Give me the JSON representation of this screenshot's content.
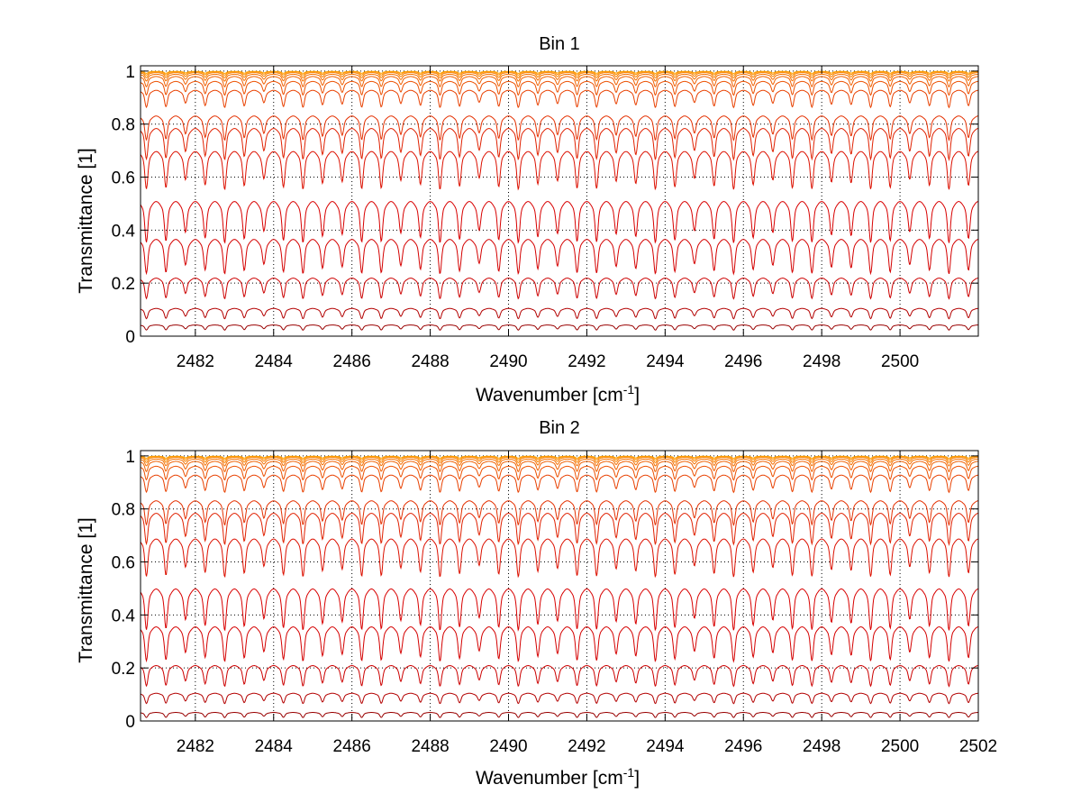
{
  "chart_data": [
    {
      "type": "line",
      "title": "Bin 1",
      "xlabel": "Wavenumber [cm",
      "xlabel_sup": "-1",
      "xlabel_suffix": "]",
      "ylabel": "Transmittance [1]",
      "xlim": [
        2480.6,
        2502.0
      ],
      "ylim": [
        0,
        1.02
      ],
      "xticks": [
        2482,
        2484,
        2486,
        2488,
        2490,
        2492,
        2494,
        2496,
        2498,
        2500
      ],
      "xtick_labels": [
        "2482",
        "2484",
        "2486",
        "2488",
        "2490",
        "2492",
        "2494",
        "2496",
        "2498",
        "2500"
      ],
      "yticks": [
        0,
        0.2,
        0.4,
        0.6,
        0.8,
        1
      ],
      "ytick_labels": [
        "0",
        "0.2",
        "0.4",
        "0.6",
        "0.8",
        "1"
      ],
      "grid": true,
      "legend": "none",
      "line_spacing_cm1": 0.5,
      "series": [
        {
          "baseline": 0.0,
          "depth": 0.0,
          "color": "#7a0000"
        },
        {
          "baseline": 0.04,
          "depth": 0.015,
          "color": "#990000"
        },
        {
          "baseline": 0.1,
          "depth": 0.03,
          "color": "#b30000"
        },
        {
          "baseline": 0.21,
          "depth": 0.06,
          "color": "#cc0000"
        },
        {
          "baseline": 0.35,
          "depth": 0.1,
          "color": "#d40000"
        },
        {
          "baseline": 0.49,
          "depth": 0.12,
          "color": "#d80000"
        },
        {
          "baseline": 0.68,
          "depth": 0.11,
          "color": "#dc1000"
        },
        {
          "baseline": 0.77,
          "depth": 0.09,
          "color": "#e02000"
        },
        {
          "baseline": 0.82,
          "depth": 0.07,
          "color": "#e43000"
        },
        {
          "baseline": 0.92,
          "depth": 0.05,
          "color": "#e84000"
        },
        {
          "baseline": 0.955,
          "depth": 0.04,
          "color": "#ec5000"
        },
        {
          "baseline": 0.975,
          "depth": 0.03,
          "color": "#f06000"
        },
        {
          "baseline": 0.985,
          "depth": 0.02,
          "color": "#f47000"
        },
        {
          "baseline": 0.992,
          "depth": 0.015,
          "color": "#f88000"
        },
        {
          "baseline": 0.996,
          "depth": 0.01,
          "color": "#fc9000"
        },
        {
          "baseline": 0.998,
          "depth": 0.006,
          "color": "#ffa000"
        }
      ]
    },
    {
      "type": "line",
      "title": "Bin 2",
      "xlabel": "Wavenumber [cm",
      "xlabel_sup": "-1",
      "xlabel_suffix": "]",
      "ylabel": "Transmittance [1]",
      "xlim": [
        2480.6,
        2502.0
      ],
      "ylim": [
        0,
        1.02
      ],
      "xticks": [
        2482,
        2484,
        2486,
        2488,
        2490,
        2492,
        2494,
        2496,
        2498,
        2500,
        2502
      ],
      "xtick_labels": [
        "2482",
        "2484",
        "2486",
        "2488",
        "2490",
        "2492",
        "2494",
        "2496",
        "2498",
        "2500",
        "2502"
      ],
      "yticks": [
        0,
        0.2,
        0.4,
        0.6,
        0.8,
        1
      ],
      "ytick_labels": [
        "0",
        "0.2",
        "0.4",
        "0.6",
        "0.8",
        "1"
      ],
      "grid": true,
      "legend": "none",
      "line_spacing_cm1": 0.5,
      "series": [
        {
          "baseline": 0.0,
          "depth": 0.0,
          "color": "#7a0000"
        },
        {
          "baseline": 0.03,
          "depth": 0.015,
          "color": "#990000"
        },
        {
          "baseline": 0.1,
          "depth": 0.03,
          "color": "#b30000"
        },
        {
          "baseline": 0.2,
          "depth": 0.06,
          "color": "#cc0000"
        },
        {
          "baseline": 0.34,
          "depth": 0.1,
          "color": "#d40000"
        },
        {
          "baseline": 0.48,
          "depth": 0.12,
          "color": "#d80000"
        },
        {
          "baseline": 0.67,
          "depth": 0.11,
          "color": "#dc1000"
        },
        {
          "baseline": 0.77,
          "depth": 0.09,
          "color": "#e02000"
        },
        {
          "baseline": 0.82,
          "depth": 0.07,
          "color": "#e43000"
        },
        {
          "baseline": 0.92,
          "depth": 0.05,
          "color": "#e84000"
        },
        {
          "baseline": 0.955,
          "depth": 0.04,
          "color": "#ec5000"
        },
        {
          "baseline": 0.975,
          "depth": 0.03,
          "color": "#f06000"
        },
        {
          "baseline": 0.985,
          "depth": 0.02,
          "color": "#f47000"
        },
        {
          "baseline": 0.992,
          "depth": 0.015,
          "color": "#f88000"
        },
        {
          "baseline": 0.996,
          "depth": 0.01,
          "color": "#fc9000"
        },
        {
          "baseline": 0.998,
          "depth": 0.006,
          "color": "#ffa000"
        }
      ]
    }
  ]
}
